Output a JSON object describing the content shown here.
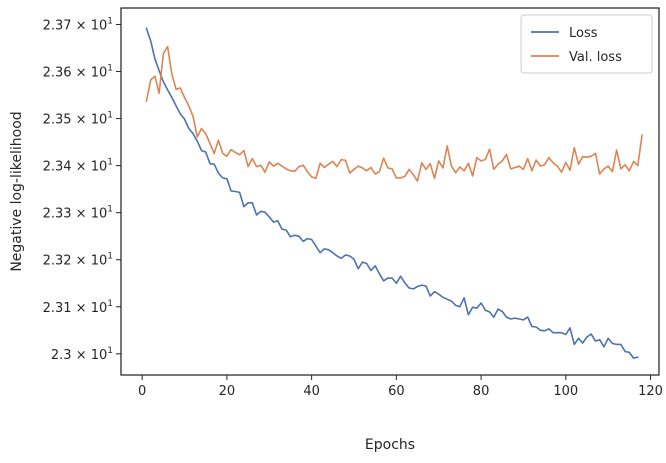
{
  "chart_data": {
    "type": "line",
    "xlabel": "Epochs",
    "ylabel": "Negative log-likelihood",
    "xlim": [
      -5,
      122
    ],
    "ylim": [
      22.955,
      23.735
    ],
    "x_ticks": [
      0,
      20,
      40,
      60,
      80,
      100,
      120
    ],
    "x_tick_labels": [
      "0",
      "20",
      "40",
      "60",
      "80",
      "100",
      "120"
    ],
    "y_ticks": [
      23.0,
      23.1,
      23.2,
      23.3,
      23.4,
      23.5,
      23.6,
      23.7
    ],
    "y_tick_labels": [
      {
        "mantissa": "2.3",
        "exp": "1"
      },
      {
        "mantissa": "2.31",
        "exp": "1"
      },
      {
        "mantissa": "2.32",
        "exp": "1"
      },
      {
        "mantissa": "2.33",
        "exp": "1"
      },
      {
        "mantissa": "2.34",
        "exp": "1"
      },
      {
        "mantissa": "2.35",
        "exp": "1"
      },
      {
        "mantissa": "2.36",
        "exp": "1"
      },
      {
        "mantissa": "2.37",
        "exp": "1"
      }
    ],
    "grid": false,
    "legend_position": "top-right",
    "series": [
      {
        "name": "Loss",
        "color": "#4c72b0",
        "x_start": 1,
        "values": [
          23.692,
          23.665,
          23.627,
          23.602,
          23.578,
          23.561,
          23.545,
          23.527,
          23.51,
          23.499,
          23.479,
          23.468,
          23.452,
          23.432,
          23.429,
          23.404,
          23.403,
          23.384,
          23.374,
          23.372,
          23.346,
          23.345,
          23.343,
          23.313,
          23.321,
          23.321,
          23.295,
          23.303,
          23.301,
          23.291,
          23.28,
          23.283,
          23.265,
          23.263,
          23.249,
          23.252,
          23.25,
          23.239,
          23.245,
          23.243,
          23.229,
          23.215,
          23.223,
          23.221,
          23.215,
          23.208,
          23.203,
          23.21,
          23.208,
          23.201,
          23.181,
          23.195,
          23.192,
          23.177,
          23.187,
          23.17,
          23.155,
          23.161,
          23.161,
          23.15,
          23.165,
          23.151,
          23.14,
          23.138,
          23.143,
          23.146,
          23.144,
          23.123,
          23.132,
          23.127,
          23.12,
          23.116,
          23.112,
          23.103,
          23.1,
          23.119,
          23.083,
          23.099,
          23.097,
          23.108,
          23.093,
          23.089,
          23.078,
          23.095,
          23.09,
          23.078,
          23.074,
          23.076,
          23.074,
          23.072,
          23.078,
          23.058,
          23.057,
          23.05,
          23.049,
          23.053,
          23.045,
          23.045,
          23.045,
          23.041,
          23.055,
          23.02,
          23.033,
          23.023,
          23.036,
          23.042,
          23.027,
          23.03,
          23.015,
          23.033,
          23.022,
          23.02,
          23.02,
          23.005,
          23.003,
          22.991,
          22.993
        ]
      },
      {
        "name": "Val. loss",
        "color": "#dd8452",
        "x_start": 1,
        "values": [
          23.537,
          23.582,
          23.59,
          23.554,
          23.638,
          23.653,
          23.595,
          23.562,
          23.565,
          23.545,
          23.527,
          23.505,
          23.461,
          23.479,
          23.468,
          23.447,
          23.426,
          23.454,
          23.426,
          23.42,
          23.434,
          23.428,
          23.423,
          23.432,
          23.398,
          23.415,
          23.398,
          23.401,
          23.386,
          23.408,
          23.399,
          23.405,
          23.399,
          23.393,
          23.389,
          23.388,
          23.398,
          23.401,
          23.387,
          23.376,
          23.373,
          23.405,
          23.396,
          23.403,
          23.409,
          23.398,
          23.413,
          23.411,
          23.384,
          23.392,
          23.399,
          23.395,
          23.389,
          23.396,
          23.382,
          23.387,
          23.416,
          23.395,
          23.393,
          23.374,
          23.374,
          23.377,
          23.392,
          23.381,
          23.367,
          23.406,
          23.392,
          23.404,
          23.373,
          23.41,
          23.395,
          23.442,
          23.399,
          23.385,
          23.397,
          23.389,
          23.405,
          23.378,
          23.417,
          23.41,
          23.413,
          23.435,
          23.392,
          23.403,
          23.41,
          23.424,
          23.393,
          23.396,
          23.399,
          23.392,
          23.415,
          23.389,
          23.412,
          23.399,
          23.402,
          23.417,
          23.406,
          23.399,
          23.386,
          23.407,
          23.39,
          23.438,
          23.403,
          23.419,
          23.418,
          23.42,
          23.426,
          23.382,
          23.393,
          23.399,
          23.387,
          23.433,
          23.393,
          23.402,
          23.389,
          23.409,
          23.4,
          23.465
        ]
      }
    ]
  }
}
